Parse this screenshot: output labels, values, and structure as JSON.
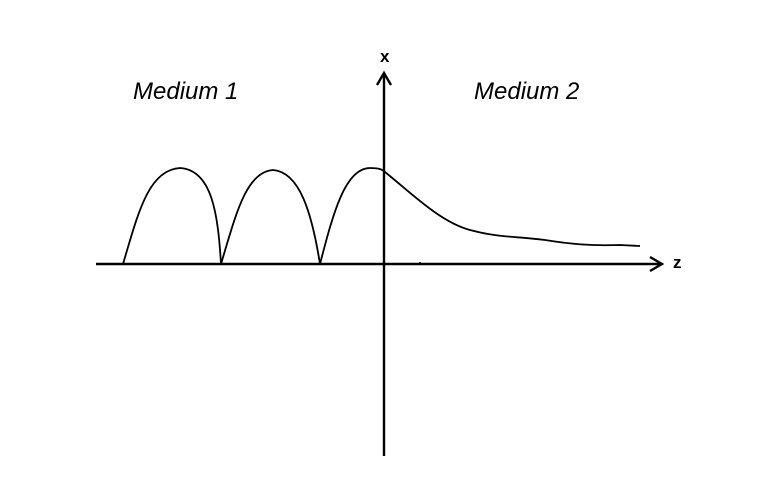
{
  "labels": {
    "medium_1": "Medium 1",
    "medium_2": "Medium 2",
    "x_axis": "x",
    "z_axis": "z"
  },
  "colors": {
    "ink": "#000000",
    "background": "#ffffff"
  }
}
